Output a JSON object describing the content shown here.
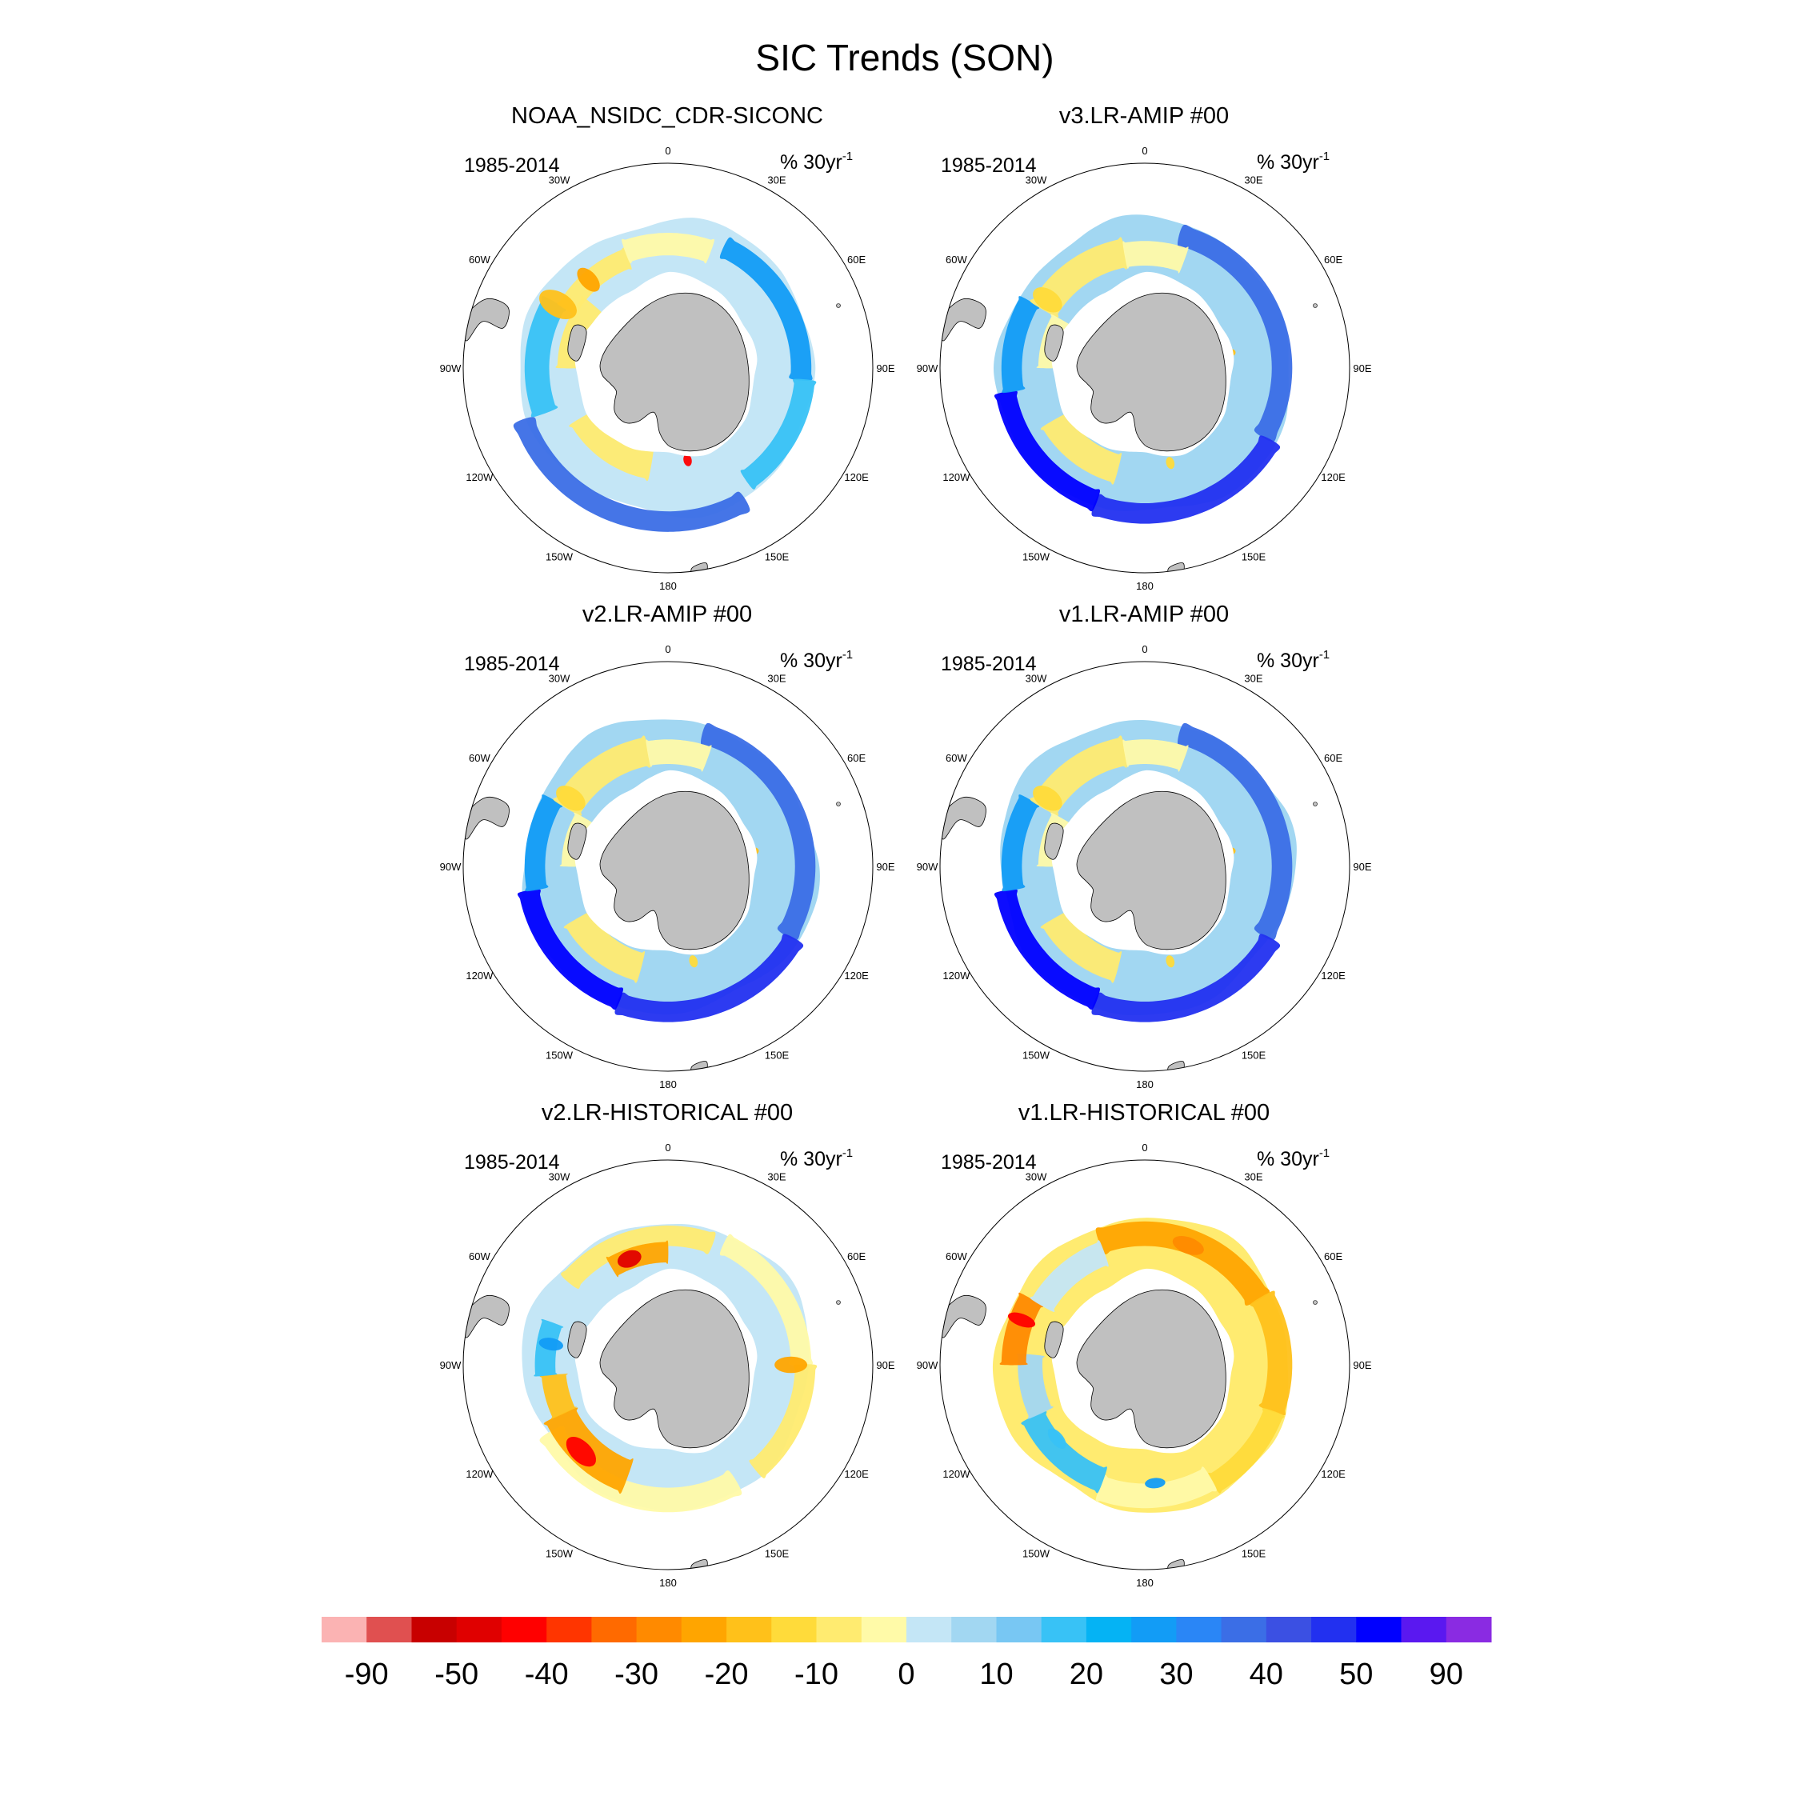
{
  "figure": {
    "title": "SIC Trends (SON)"
  },
  "chart_data": {
    "type": "heatmap",
    "projection": "south-polar-stereographic",
    "variable": "Sea ice concentration trend",
    "units_text": "% 30yr",
    "units_sup": "-1",
    "period": "1985-2014",
    "longitude_labels": [
      "0",
      "30E",
      "60E",
      "90E",
      "120E",
      "150E",
      "180",
      "150W",
      "120W",
      "90W",
      "60W",
      "30W"
    ],
    "panels": [
      {
        "title": "NOAA_NSIDC_CDR-SICONC",
        "pattern": "obs"
      },
      {
        "title": "v3.LR-AMIP  #00",
        "pattern": "amip"
      },
      {
        "title": "v2.LR-AMIP  #00",
        "pattern": "amip"
      },
      {
        "title": "v1.LR-AMIP  #00",
        "pattern": "amip"
      },
      {
        "title": "v2.LR-HISTORICAL  #00",
        "pattern": "hist2"
      },
      {
        "title": "v1.LR-HISTORICAL  #00",
        "pattern": "hist1"
      }
    ],
    "colorbar": {
      "labels": [
        "-90",
        "-50",
        "-40",
        "-30",
        "-20",
        "-10",
        "0",
        "10",
        "20",
        "30",
        "40",
        "50",
        "90"
      ],
      "colors": [
        "#fbb3b3",
        "#e05050",
        "#c80000",
        "#e00000",
        "#ff0000",
        "#ff3500",
        "#ff6a00",
        "#ff8a00",
        "#ffa500",
        "#ffc11a",
        "#ffdb3a",
        "#ffeb70",
        "#fffaa8",
        "#c4e6f6",
        "#a2d7f2",
        "#78c7f3",
        "#38c2f6",
        "#05b3f4",
        "#129cf6",
        "#2a86f6",
        "#3b6ee6",
        "#3b50e3",
        "#2230f0",
        "#0000ff",
        "#5a18f0",
        "#8a2be2"
      ]
    },
    "land_color": "#c0c0c0",
    "ocean_color": "#ffffff"
  }
}
